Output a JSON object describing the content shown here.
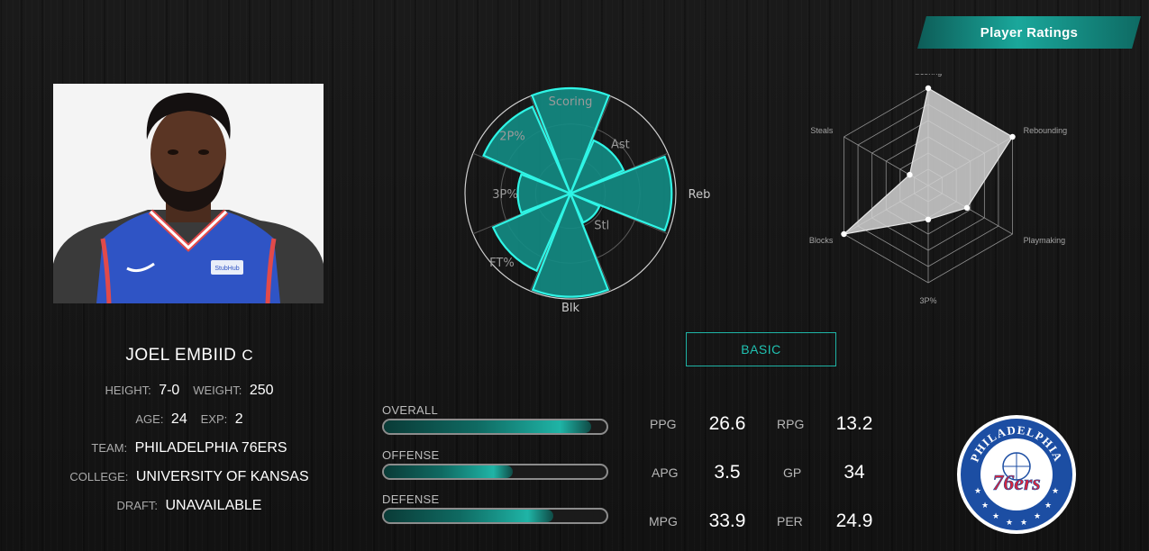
{
  "header": {
    "tab_label": "Player Ratings"
  },
  "player": {
    "name": "JOEL EMBIID",
    "position": "C",
    "height_label": "HEIGHT:",
    "height": "7-0",
    "weight_label": "WEIGHT:",
    "weight": "250",
    "age_label": "AGE:",
    "age": "24",
    "exp_label": "EXP:",
    "exp": "2",
    "team_label": "TEAM:",
    "team": "PHILADELPHIA 76ERS",
    "college_label": "COLLEGE:",
    "college": "UNIVERSITY OF KANSAS",
    "draft_label": "DRAFT:",
    "draft": "UNAVAILABLE",
    "jersey_badge": "StubHub"
  },
  "colors": {
    "accent": "#1fb4a6",
    "accent_fill": "#138c84",
    "polar_stroke": "#2ff5e6",
    "radar_fill": "#d2d2d2",
    "grid": "#8d8d8d"
  },
  "chart_data": [
    {
      "type": "polar-area",
      "grid": true,
      "categories": [
        "Scoring",
        "Ast",
        "Reb",
        "Stl",
        "Blk",
        "FT%",
        "3P%",
        "2P%"
      ],
      "values": [
        1.0,
        0.55,
        0.96,
        0.3,
        0.98,
        0.8,
        0.5,
        0.9
      ]
    },
    {
      "type": "radar",
      "grid": true,
      "categories": [
        "Scoring",
        "Rebounding",
        "Playmaking",
        "3P%",
        "Blocks",
        "Steals"
      ],
      "values": [
        1.0,
        1.0,
        0.46,
        0.35,
        1.0,
        0.22
      ]
    }
  ],
  "view_toggle": {
    "label": "BASIC"
  },
  "ratings": {
    "overall": {
      "label": "OVERALL",
      "value": 0.93
    },
    "offense": {
      "label": "OFFENSE",
      "value": 0.58
    },
    "defense": {
      "label": "DEFENSE",
      "value": 0.76
    }
  },
  "stats": {
    "ppg_label": "PPG",
    "ppg": "26.6",
    "rpg_label": "RPG",
    "rpg": "13.2",
    "apg_label": "APG",
    "apg": "3.5",
    "gp_label": "GP",
    "gp": "34",
    "mpg_label": "MPG",
    "mpg": "33.9",
    "per_label": "PER",
    "per": "24.9"
  },
  "team_logo": {
    "arc_text": "PHILADELPHIA",
    "number": "76ers",
    "icon": "basketball-icon"
  }
}
